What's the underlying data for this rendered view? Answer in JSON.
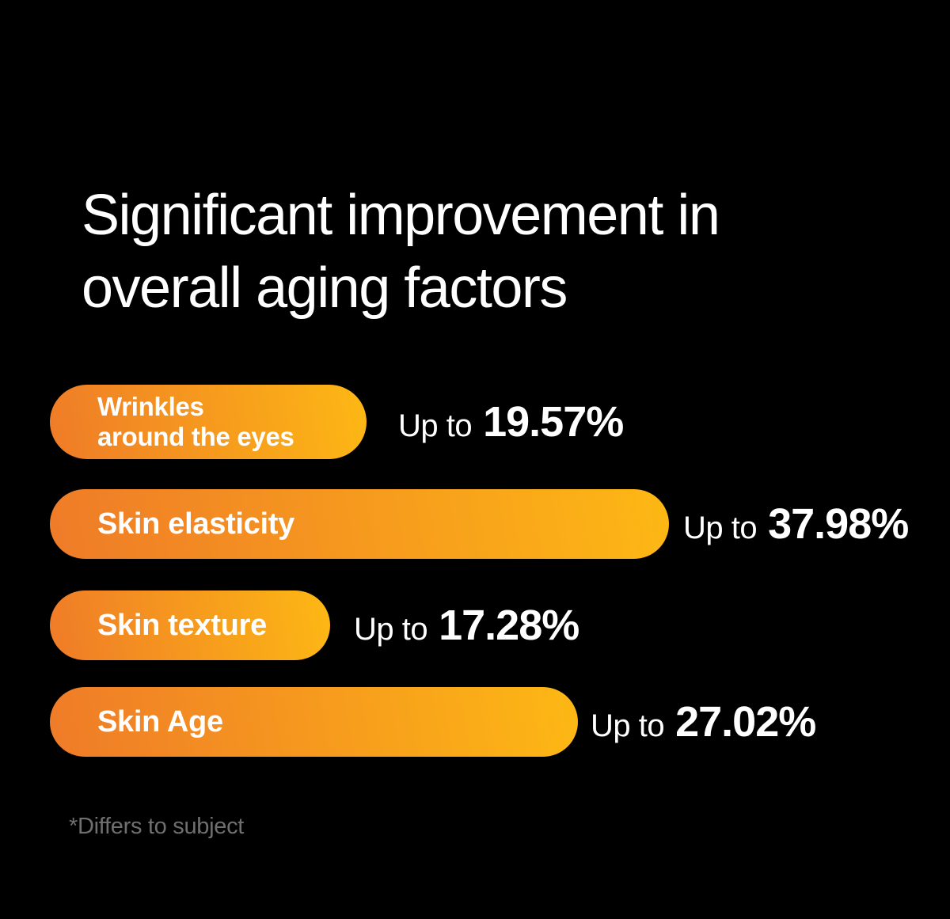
{
  "page": {
    "background_color": "#000000",
    "text_color": "#FFFFFF",
    "bar_gradient_start": "#EF7B28",
    "bar_gradient_end": "#FDB814",
    "footnote_color": "#6F6F6F"
  },
  "title": {
    "text": "Significant improvement in\noverall aging factors"
  },
  "footnote": {
    "text": "*Differs to subject"
  },
  "chart_data": {
    "type": "bar",
    "orientation": "horizontal",
    "title": "Significant improvement in overall aging factors",
    "categories": [
      "Wrinkles around the eyes",
      "Skin elasticity",
      "Skin texture",
      "Skin Age"
    ],
    "values": [
      19.57,
      37.98,
      17.28,
      27.02
    ],
    "value_prefix": "Up to",
    "value_suffix": "%",
    "legend": null,
    "grid": false,
    "footnote": "*Differs to subject",
    "bars": [
      {
        "label": "Wrinkles\naround the eyes",
        "prefix": "Up to",
        "value_text": "19.57%",
        "value": 19.57
      },
      {
        "label": "Skin elasticity",
        "prefix": "Up to",
        "value_text": "37.98%",
        "value": 37.98
      },
      {
        "label": "Skin texture",
        "prefix": "Up to",
        "value_text": "17.28%",
        "value": 17.28
      },
      {
        "label": "Skin Age",
        "prefix": "Up to",
        "value_text": "27.02%",
        "value": 27.02
      }
    ]
  }
}
